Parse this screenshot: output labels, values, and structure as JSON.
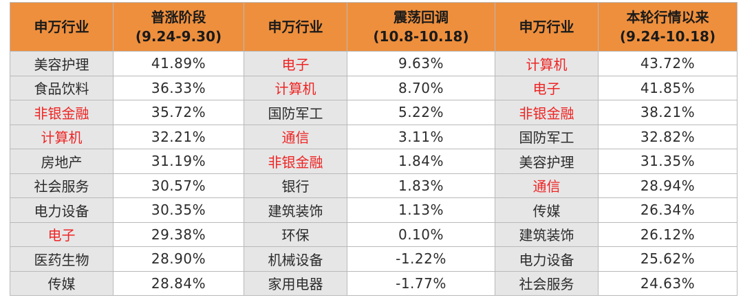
{
  "header": {
    "industry": "申万行业",
    "p1_line1": "普涨阶段",
    "p1_line2": "(9.24-9.30)",
    "p2_line1": "震荡回调",
    "p2_line2": "(10.8-10.18)",
    "p3_line1": "本轮行情以来",
    "p3_line2": "(9.24-10.18)"
  },
  "colors": {
    "header_bg": "#ee8f3d",
    "industry_bg": "#e6e6e6",
    "highlight": "#ee2424"
  },
  "rows": [
    {
      "i1": "美容护理",
      "r1": false,
      "v1": "41.89%",
      "i2": "电子",
      "r2": true,
      "v2": "9.63%",
      "i3": "计算机",
      "r3": true,
      "v3": "43.72%"
    },
    {
      "i1": "食品饮料",
      "r1": false,
      "v1": "36.33%",
      "i2": "计算机",
      "r2": true,
      "v2": "8.70%",
      "i3": "电子",
      "r3": true,
      "v3": "41.85%"
    },
    {
      "i1": "非银金融",
      "r1": true,
      "v1": "35.72%",
      "i2": "国防军工",
      "r2": false,
      "v2": "5.22%",
      "i3": "非银金融",
      "r3": true,
      "v3": "38.21%"
    },
    {
      "i1": "计算机",
      "r1": true,
      "v1": "32.21%",
      "i2": "通信",
      "r2": true,
      "v2": "3.11%",
      "i3": "国防军工",
      "r3": false,
      "v3": "32.82%"
    },
    {
      "i1": "房地产",
      "r1": false,
      "v1": "31.19%",
      "i2": "非银金融",
      "r2": true,
      "v2": "1.84%",
      "i3": "美容护理",
      "r3": false,
      "v3": "31.35%"
    },
    {
      "i1": "社会服务",
      "r1": false,
      "v1": "30.57%",
      "i2": "银行",
      "r2": false,
      "v2": "1.83%",
      "i3": "通信",
      "r3": true,
      "v3": "28.94%"
    },
    {
      "i1": "电力设备",
      "r1": false,
      "v1": "30.35%",
      "i2": "建筑装饰",
      "r2": false,
      "v2": "1.13%",
      "i3": "传媒",
      "r3": false,
      "v3": "26.34%"
    },
    {
      "i1": "电子",
      "r1": true,
      "v1": "29.38%",
      "i2": "环保",
      "r2": false,
      "v2": "0.10%",
      "i3": "建筑装饰",
      "r3": false,
      "v3": "26.12%"
    },
    {
      "i1": "医药生物",
      "r1": false,
      "v1": "28.90%",
      "i2": "机械设备",
      "r2": false,
      "v2": "-1.22%",
      "i3": "电力设备",
      "r3": false,
      "v3": "25.62%"
    },
    {
      "i1": "传媒",
      "r1": false,
      "v1": "28.84%",
      "i2": "家用电器",
      "r2": false,
      "v2": "-1.77%",
      "i3": "社会服务",
      "r3": false,
      "v3": "24.63%"
    }
  ]
}
